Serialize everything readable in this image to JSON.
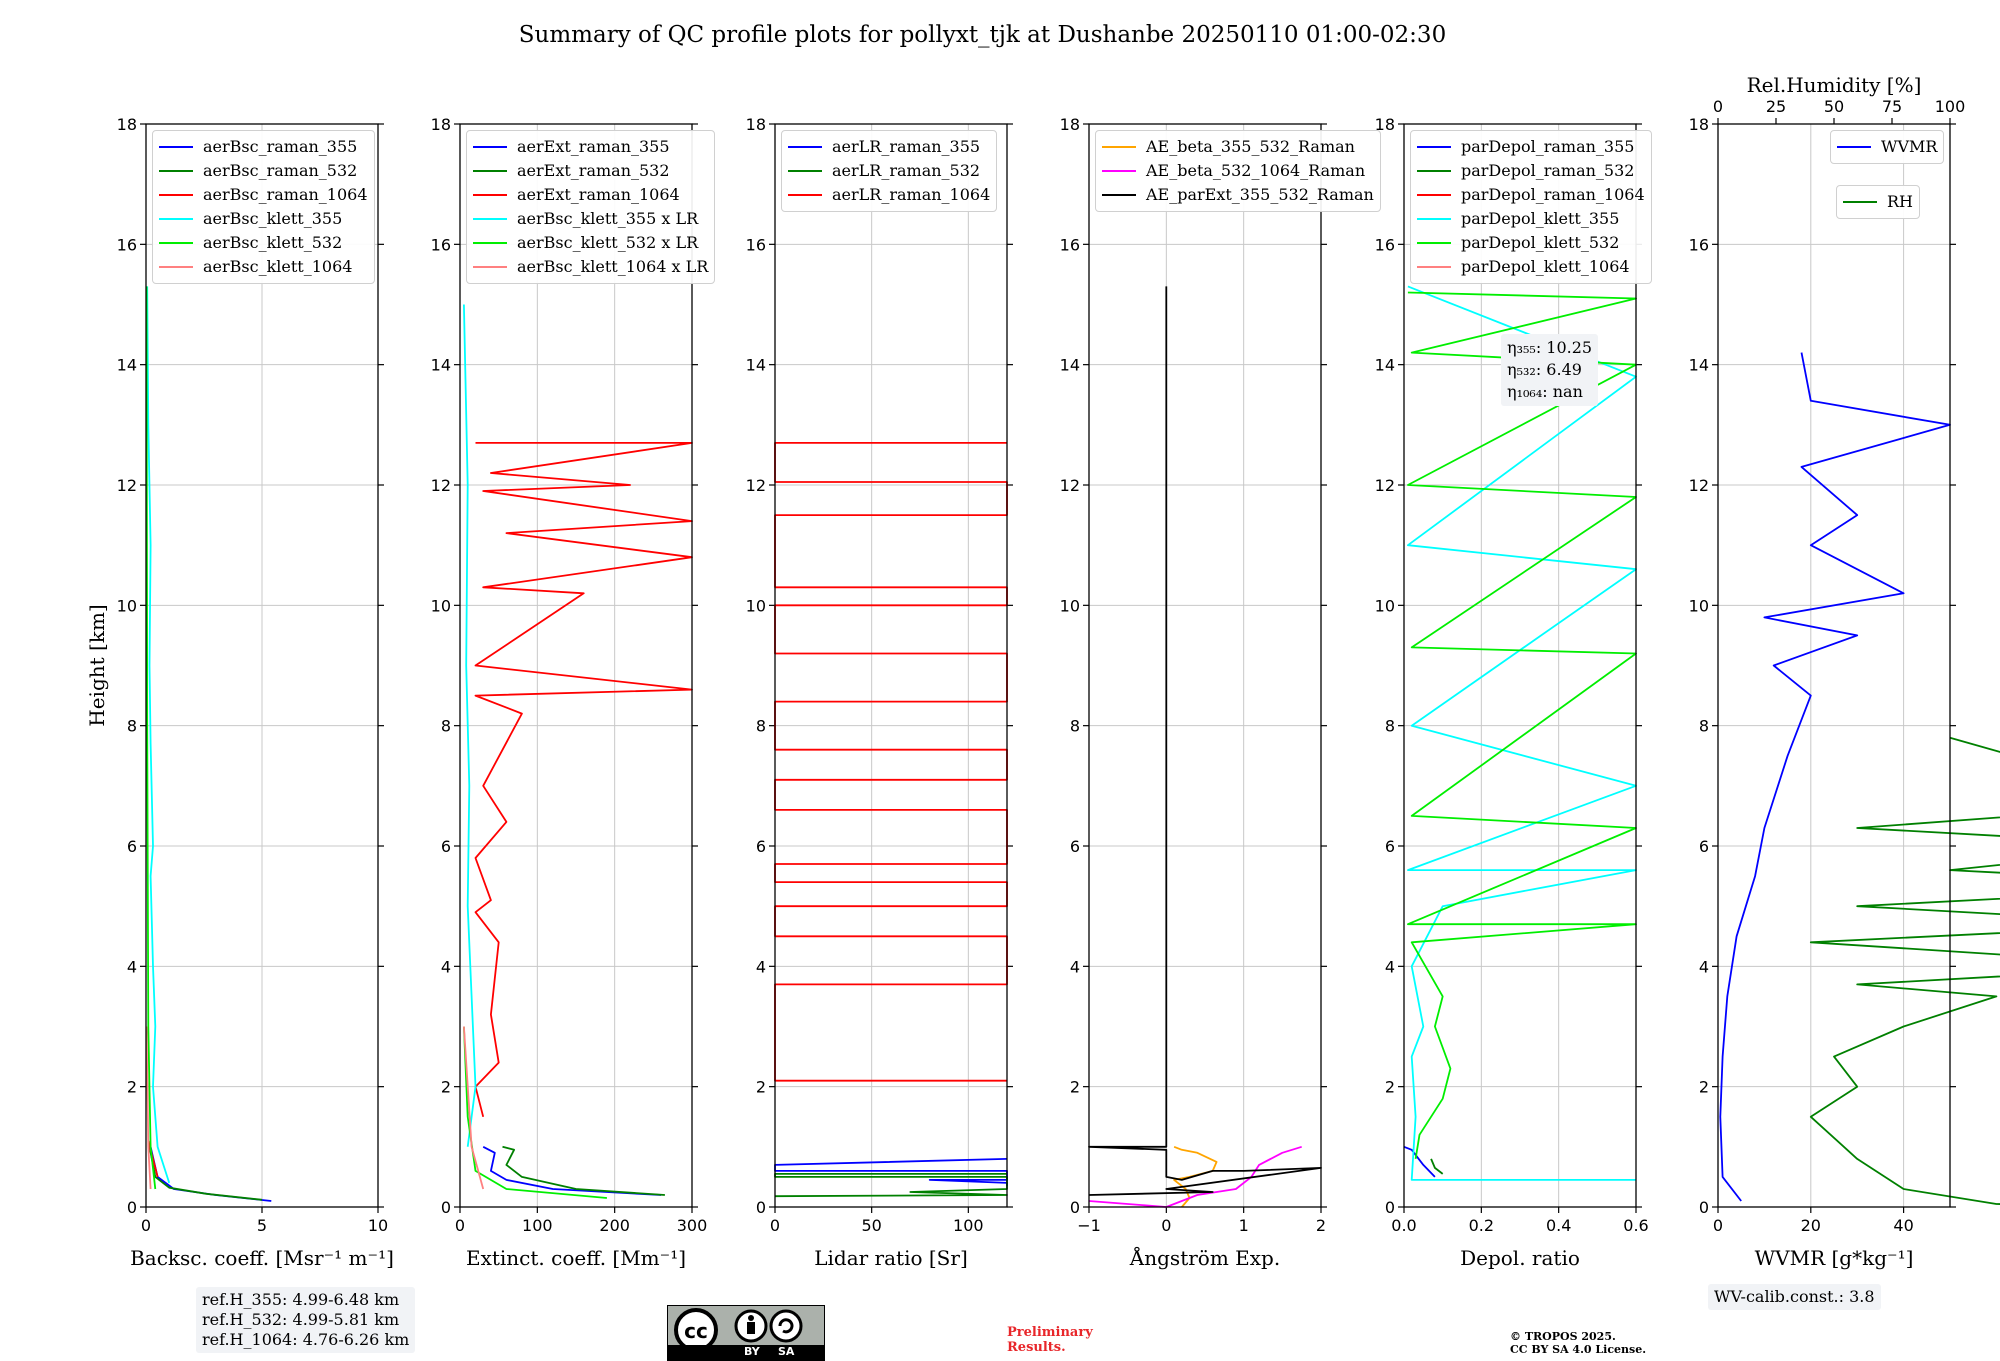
{
  "title": "Summary of QC profile plots for pollyxt_tjk at Dushanbe 20250110 01:00-02:30",
  "ylabel": "Height [km]",
  "colors": {
    "blue": "#0000ff",
    "green": "#008000",
    "red": "#ff0000",
    "cyan": "#00ffff",
    "lime": "#00ee00",
    "salmon": "#ff8080",
    "orange": "#ffa500",
    "magenta": "#ff00ff",
    "black": "#000000"
  },
  "chart_data": [
    {
      "type": "line",
      "xlabel": "Backsc. coeff. [Msr⁻¹ m⁻¹]",
      "xlim": [
        0,
        10
      ],
      "ylim": [
        0,
        18
      ],
      "xticks": [
        "0",
        "5",
        "10"
      ],
      "yticks": [
        "0",
        "2",
        "4",
        "6",
        "8",
        "10",
        "12",
        "14",
        "16",
        "18"
      ],
      "legend_position": "top-left",
      "series": [
        {
          "name": "aerBsc_raman_355",
          "color": "blue",
          "x": [
            5.4,
            3.0,
            1.2,
            0.5,
            0.2
          ],
          "y": [
            0.1,
            0.2,
            0.3,
            0.5,
            1.0
          ]
        },
        {
          "name": "aerBsc_raman_532",
          "color": "green",
          "x": [
            5.0,
            2.6,
            1.0,
            0.4,
            0.15
          ],
          "y": [
            0.12,
            0.22,
            0.32,
            0.5,
            1.0
          ]
        },
        {
          "name": "aerBsc_raman_1064",
          "color": "red",
          "x": [
            0.5,
            0.3,
            0.1
          ],
          "y": [
            0.5,
            0.8,
            1.1
          ]
        },
        {
          "name": "aerBsc_klett_355",
          "color": "cyan",
          "x": [
            1.0,
            0.5,
            0.3,
            0.4,
            0.3,
            0.2,
            0.3,
            0.2,
            0.15,
            0.2,
            0.1,
            0.05
          ],
          "y": [
            0.4,
            1.0,
            2.0,
            3.0,
            4.0,
            5.5,
            6.0,
            7.7,
            9.0,
            11.0,
            13.0,
            15.3
          ]
        },
        {
          "name": "aerBsc_klett_532",
          "color": "lime",
          "x": [
            0.4,
            0.2,
            0.1,
            0.05,
            0.02
          ],
          "y": [
            0.3,
            1.0,
            3.0,
            8.0,
            15.3
          ]
        },
        {
          "name": "aerBsc_klett_1064",
          "color": "salmon",
          "x": [
            0.2,
            0.1,
            0.02
          ],
          "y": [
            0.3,
            1.0,
            3.0
          ]
        }
      ]
    },
    {
      "type": "line",
      "xlabel": "Extinct. coeff. [Mm⁻¹]",
      "xlim": [
        0,
        300
      ],
      "ylim": [
        0,
        18
      ],
      "xticks": [
        "0",
        "100",
        "200",
        "300"
      ],
      "yticks": [
        "0",
        "2",
        "4",
        "6",
        "8",
        "10",
        "12",
        "14",
        "16",
        "18"
      ],
      "legend_position": "top-left",
      "series": [
        {
          "name": "aerExt_raman_355",
          "color": "blue",
          "x": [
            260,
            120,
            60,
            40,
            45,
            30
          ],
          "y": [
            0.2,
            0.3,
            0.45,
            0.6,
            0.9,
            1.0
          ]
        },
        {
          "name": "aerExt_raman_532",
          "color": "green",
          "x": [
            265,
            150,
            80,
            60,
            70,
            55
          ],
          "y": [
            0.2,
            0.3,
            0.5,
            0.7,
            0.95,
            1.0
          ]
        },
        {
          "name": "aerExt_raman_1064",
          "color": "red",
          "x": [
            30,
            20,
            50,
            40,
            50,
            20,
            40,
            20,
            60,
            30,
            80,
            20,
            300,
            20,
            160,
            30,
            300,
            60,
            300,
            30,
            220,
            40,
            300,
            20
          ],
          "y": [
            1.5,
            2.0,
            2.4,
            3.2,
            4.4,
            4.9,
            5.1,
            5.8,
            6.4,
            7.0,
            8.2,
            8.5,
            8.6,
            9.0,
            10.2,
            10.3,
            10.8,
            11.2,
            11.4,
            11.9,
            12.0,
            12.2,
            12.7,
            12.7
          ]
        },
        {
          "name": "aerBsc_klett_355 x LR",
          "color": "cyan",
          "x": [
            10,
            20,
            15,
            10,
            12,
            8,
            10,
            5
          ],
          "y": [
            1.0,
            2.0,
            3.5,
            5.0,
            7.0,
            9.0,
            12.0,
            15.0
          ]
        },
        {
          "name": "aerBsc_klett_532 x LR",
          "color": "lime",
          "x": [
            190,
            60,
            20,
            10,
            5
          ],
          "y": [
            0.15,
            0.3,
            0.6,
            1.5,
            3.0
          ]
        },
        {
          "name": "aerBsc_klett_1064 x LR",
          "color": "salmon",
          "x": [
            30,
            15,
            5
          ],
          "y": [
            0.3,
            1.0,
            3.0
          ]
        }
      ]
    },
    {
      "type": "line",
      "xlabel": "Lidar ratio [Sr]",
      "xlim": [
        0,
        120
      ],
      "ylim": [
        0,
        18
      ],
      "xticks": [
        "0",
        "50",
        "100"
      ],
      "yticks": [
        "0",
        "2",
        "4",
        "6",
        "8",
        "10",
        "12",
        "14",
        "16",
        "18"
      ],
      "legend_position": "top-left",
      "series": [
        {
          "name": "aerLR_raman_355",
          "color": "blue",
          "x": [
            120,
            0,
            0,
            120,
            120,
            80,
            120,
            120
          ],
          "y": [
            0.8,
            0.7,
            0.6,
            0.6,
            0.45,
            0.45,
            0.4,
            0.35
          ]
        },
        {
          "name": "aerLR_raman_532",
          "color": "green",
          "x": [
            120,
            0,
            0,
            120,
            120,
            70,
            120,
            0
          ],
          "y": [
            0.55,
            0.55,
            0.5,
            0.5,
            0.3,
            0.25,
            0.2,
            0.18
          ]
        },
        {
          "name": "aerLR_raman_1064",
          "color": "red",
          "x": [
            120,
            0,
            0,
            120,
            120,
            0,
            0,
            120,
            120,
            0,
            0,
            120,
            120,
            0,
            0,
            120,
            120,
            0,
            0,
            120,
            120,
            0,
            0,
            120,
            120,
            0,
            0,
            120,
            120,
            0,
            0,
            120
          ],
          "y": [
            12.7,
            12.7,
            12.05,
            12.05,
            11.5,
            11.5,
            10.3,
            10.3,
            10.0,
            10.0,
            9.2,
            9.2,
            8.4,
            8.4,
            7.6,
            7.6,
            7.1,
            7.1,
            6.6,
            6.6,
            5.7,
            5.7,
            5.4,
            5.4,
            5.0,
            5.0,
            4.5,
            4.5,
            3.7,
            3.7,
            2.1,
            2.1
          ]
        }
      ]
    },
    {
      "type": "line",
      "xlabel": "Ångström Exp.",
      "xlim": [
        -1,
        2
      ],
      "ylim": [
        0,
        18
      ],
      "xticks": [
        "−1",
        "0",
        "1",
        "2"
      ],
      "yticks": [
        "0",
        "2",
        "4",
        "6",
        "8",
        "10",
        "12",
        "14",
        "16",
        "18"
      ],
      "legend_position": "top-left",
      "series": [
        {
          "name": "AE_beta_355_532_Raman",
          "color": "orange",
          "x": [
            0.1,
            0.2,
            0.4,
            0.65,
            0.6,
            0.3,
            0.1,
            0.25,
            0.3,
            0.2
          ],
          "y": [
            1.0,
            0.95,
            0.9,
            0.75,
            0.6,
            0.5,
            0.45,
            0.3,
            0.15,
            0.0
          ]
        },
        {
          "name": "AE_beta_532_1064_Raman",
          "color": "magenta",
          "x": [
            1.75,
            1.5,
            1.2,
            1.1,
            0.9,
            0.4,
            0.0,
            -0.5,
            -1.0
          ],
          "y": [
            1.0,
            0.9,
            0.7,
            0.5,
            0.3,
            0.2,
            0.0,
            0.05,
            0.1
          ]
        },
        {
          "name": "AE_parExt_355_532_Raman",
          "color": "black",
          "x": [
            0,
            0,
            -1,
            0,
            0,
            0.2,
            0.6,
            1.0,
            2.0,
            0.0,
            0.6,
            -1.0
          ],
          "y": [
            15.3,
            1.0,
            1.0,
            0.95,
            0.5,
            0.45,
            0.6,
            0.6,
            0.65,
            0.3,
            0.25,
            0.2
          ]
        }
      ]
    },
    {
      "type": "line",
      "xlabel": "Depol. ratio",
      "xlim": [
        0,
        0.6
      ],
      "ylim": [
        0,
        18
      ],
      "xticks": [
        "0.0",
        "0.2",
        "0.4",
        "0.6"
      ],
      "yticks": [
        "0",
        "2",
        "4",
        "6",
        "8",
        "10",
        "12",
        "14",
        "16",
        "18"
      ],
      "legend_position": "top-left",
      "series": [
        {
          "name": "parDepol_raman_355",
          "color": "blue",
          "x": [
            0.0,
            0.02,
            0.05,
            0.08
          ],
          "y": [
            1.0,
            0.95,
            0.7,
            0.5
          ]
        },
        {
          "name": "parDepol_raman_532",
          "color": "green",
          "x": [
            0.07,
            0.08,
            0.1
          ],
          "y": [
            0.8,
            0.65,
            0.55
          ]
        },
        {
          "name": "parDepol_raman_1064",
          "color": "red",
          "x": [],
          "y": []
        },
        {
          "name": "parDepol_klett_355",
          "color": "cyan",
          "x": [
            0.6,
            0.02,
            0.03,
            0.02,
            0.05,
            0.02,
            0.1,
            0.6,
            0.01,
            0.6,
            0.02,
            0.6,
            0.01,
            0.6,
            0.01
          ],
          "y": [
            0.45,
            0.45,
            1.5,
            2.5,
            3.0,
            4.0,
            5.0,
            5.6,
            5.6,
            7.0,
            8.0,
            10.6,
            11.0,
            13.8,
            15.3
          ]
        },
        {
          "name": "parDepol_klett_532",
          "color": "lime",
          "x": [
            0.03,
            0.04,
            0.1,
            0.12,
            0.08,
            0.1,
            0.02,
            0.6,
            0.01,
            0.6,
            0.02,
            0.6,
            0.02,
            0.6,
            0.01,
            0.6,
            0.02,
            0.6,
            0.01
          ],
          "y": [
            0.8,
            1.2,
            1.8,
            2.3,
            3.0,
            3.5,
            4.4,
            4.7,
            4.7,
            6.3,
            6.5,
            9.2,
            9.3,
            11.8,
            12.0,
            14.0,
            14.2,
            15.1,
            15.2
          ]
        },
        {
          "name": "parDepol_klett_1064",
          "color": "salmon",
          "x": [],
          "y": []
        }
      ]
    },
    {
      "type": "line",
      "xlabel": "WVMR [g*kg⁻¹]",
      "xlabel2": "Rel.Humidity [%]",
      "xlim": [
        0,
        50
      ],
      "x2lim": [
        0,
        100
      ],
      "ylim": [
        0,
        18
      ],
      "xticks": [
        "0",
        "20",
        "40"
      ],
      "x2ticks": [
        "0",
        "25",
        "50",
        "75",
        "100"
      ],
      "yticks": [
        "0",
        "2",
        "4",
        "6",
        "8",
        "10",
        "12",
        "14",
        "16",
        "18"
      ],
      "legend_position": "top-right",
      "series": [
        {
          "name": "WVMR",
          "color": "blue",
          "x": [
            5,
            1,
            0.5,
            1,
            2,
            4,
            8,
            10,
            15,
            20,
            12,
            30,
            10,
            40,
            20,
            30,
            18,
            50,
            20,
            18
          ],
          "y": [
            0.1,
            0.5,
            1.5,
            2.5,
            3.5,
            4.5,
            5.5,
            6.3,
            7.5,
            8.5,
            9.0,
            9.5,
            9.8,
            10.2,
            11.0,
            11.5,
            12.3,
            13.0,
            13.4,
            14.2
          ]
        },
        {
          "name": "RH",
          "color": "green",
          "x": [
            95,
            60,
            40,
            30,
            20,
            30,
            25,
            40,
            60,
            30,
            100,
            20,
            100,
            30,
            80,
            100,
            50,
            100,
            30,
            100,
            50
          ],
          "y": [
            0.0,
            0.05,
            0.3,
            0.8,
            1.5,
            2.0,
            2.5,
            3.0,
            3.5,
            3.7,
            4.0,
            4.4,
            4.7,
            5.0,
            5.2,
            5.4,
            5.6,
            6.0,
            6.3,
            6.7,
            7.8
          ]
        }
      ]
    }
  ],
  "annotations": {
    "eta": [
      "η₃₅₅: 10.25",
      "η₅₃₂: 6.49",
      "η₁₀₆₄: nan"
    ],
    "ref_heights": [
      "ref.H_355: 4.99-6.48 km",
      "ref.H_532: 4.99-5.81 km",
      "ref.H_1064: 4.76-6.26 km"
    ],
    "wv_calib": "WV-calib.const.: 3.8",
    "preliminary": [
      "Preliminary",
      "Results."
    ],
    "copyright": [
      "© TROPOS 2025.",
      "CC BY SA 4.0 License."
    ],
    "cc_labels": [
      "BY",
      "SA"
    ]
  }
}
